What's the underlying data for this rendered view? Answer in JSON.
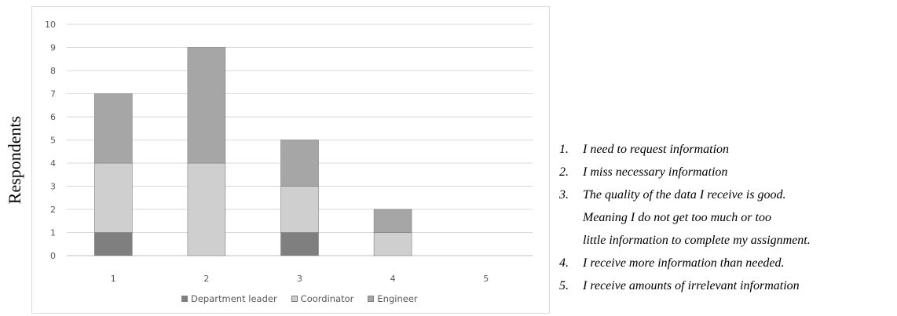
{
  "chart_data": {
    "type": "bar",
    "stacked": true,
    "categories": [
      "1",
      "2",
      "3",
      "4",
      "5"
    ],
    "series": [
      {
        "name": "Department leader",
        "values": [
          1,
          0,
          1,
          0,
          0
        ],
        "color": "#7f7f7f"
      },
      {
        "name": "Coordinator",
        "values": [
          3,
          4,
          2,
          1,
          0
        ],
        "color": "#cfcfcf"
      },
      {
        "name": "Engineer",
        "values": [
          3,
          5,
          2,
          1,
          0
        ],
        "color": "#a6a6a6"
      }
    ],
    "title": "",
    "xlabel": "",
    "ylabel": "Respondents",
    "ylim": [
      0,
      10
    ],
    "yticks": [
      "0",
      "1",
      "2",
      "3",
      "4",
      "5",
      "6",
      "7",
      "8",
      "9",
      "10"
    ],
    "grid": true,
    "legend_position": "bottom"
  },
  "notes": [
    {
      "num": "1.",
      "lines": [
        "I need to request information"
      ]
    },
    {
      "num": "2.",
      "lines": [
        "I miss necessary information"
      ]
    },
    {
      "num": "3.",
      "lines": [
        "The quality of the data I receive is good.",
        "Meaning I do not get too much or too",
        "little information to complete my assignment."
      ]
    },
    {
      "num": "4.",
      "lines": [
        "I receive more information than needed."
      ]
    },
    {
      "num": "5.",
      "lines": [
        "I receive amounts of irrelevant information"
      ]
    }
  ]
}
